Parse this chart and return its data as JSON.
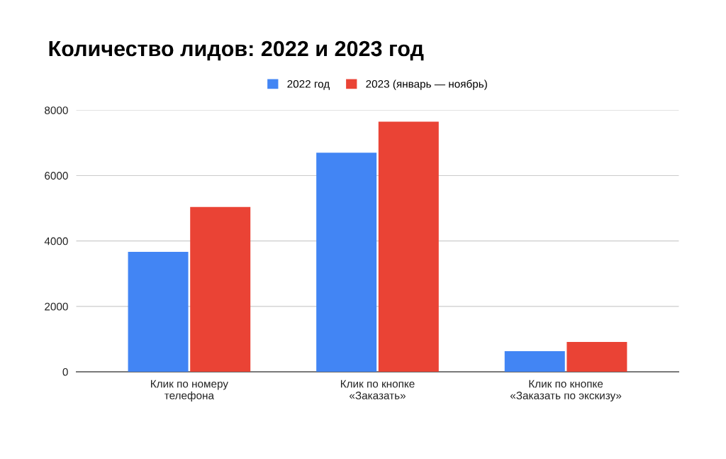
{
  "chart_data": {
    "type": "bar",
    "title": "Количество лидов: 2022 и 2023 год",
    "categories": [
      "Клик по номеру\nтелефона",
      "Клик по кнопке\n«Заказать»",
      "Клик по кнопке\n«Заказать по экскизу»"
    ],
    "series": [
      {
        "name": "2022 год",
        "color": "#4285f4",
        "values": [
          3670,
          6700,
          630
        ]
      },
      {
        "name": "2023 (январь — ноябрь)",
        "color": "#ea4335",
        "values": [
          5040,
          7650,
          910
        ]
      }
    ],
    "ylim": [
      0,
      8000
    ],
    "yticks": [
      0,
      2000,
      4000,
      6000,
      8000
    ],
    "grid": "y",
    "legend": "top"
  }
}
